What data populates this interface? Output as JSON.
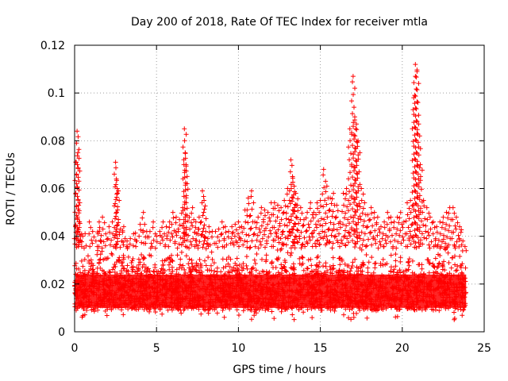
{
  "chart_data": {
    "type": "scatter",
    "title": "Day 200 of 2018, Rate Of TEC Index for receiver mtla",
    "xlabel": "GPS time / hours",
    "ylabel": "ROTI / TECUs",
    "xlim": [
      0,
      25
    ],
    "ylim": [
      0,
      0.12
    ],
    "x_ticks": [
      0,
      5,
      10,
      15,
      20,
      25
    ],
    "x_tick_labels": [
      "0",
      "5",
      "10",
      "15",
      "20",
      "25"
    ],
    "y_ticks": [
      0,
      0.02,
      0.04,
      0.06,
      0.08,
      0.1,
      0.12
    ],
    "y_tick_labels": [
      "0",
      "0.02",
      "0.04",
      "0.06",
      "0.08",
      "0.1",
      "0.12"
    ],
    "grid": true,
    "marker": "+",
    "color": "#ff0000",
    "series": [
      {
        "name": "ROTI",
        "x": [
          0.05,
          0.1,
          0.15,
          0.2,
          0.25,
          0.3,
          0.35,
          0.5,
          0.7,
          0.9,
          1.1,
          1.3,
          1.5,
          1.7,
          1.9,
          2.1,
          2.3,
          2.5,
          2.55,
          2.6,
          2.8,
          3.0,
          3.2,
          3.4,
          3.6,
          3.8,
          4.0,
          4.2,
          4.4,
          4.6,
          4.8,
          5.0,
          5.2,
          5.4,
          5.6,
          5.8,
          6.0,
          6.2,
          6.4,
          6.6,
          6.7,
          6.75,
          6.8,
          7.0,
          7.2,
          7.4,
          7.6,
          7.8,
          7.9,
          8.0,
          8.2,
          8.4,
          8.6,
          8.8,
          9.0,
          9.2,
          9.4,
          9.6,
          9.8,
          10.0,
          10.2,
          10.4,
          10.6,
          10.8,
          11.0,
          11.2,
          11.4,
          11.6,
          11.8,
          12.0,
          12.2,
          12.4,
          12.6,
          12.8,
          13.0,
          13.2,
          13.3,
          13.4,
          13.5,
          13.6,
          13.8,
          14.0,
          14.2,
          14.4,
          14.6,
          14.8,
          15.0,
          15.2,
          15.4,
          15.6,
          15.8,
          16.0,
          16.2,
          16.4,
          16.6,
          16.8,
          17.0,
          17.1,
          17.2,
          17.3,
          17.5,
          17.7,
          17.9,
          18.1,
          18.3,
          18.5,
          18.7,
          18.9,
          19.1,
          19.3,
          19.5,
          19.7,
          19.9,
          20.1,
          20.3,
          20.5,
          20.7,
          20.8,
          20.9,
          21.0,
          21.1,
          21.3,
          21.5,
          21.7,
          21.9,
          22.1,
          22.3,
          22.5,
          22.7,
          22.9,
          23.1,
          23.3,
          23.5,
          23.7,
          23.9
        ],
        "y": [
          0.044,
          0.071,
          0.084,
          0.075,
          0.053,
          0.046,
          0.038,
          0.04,
          0.036,
          0.046,
          0.042,
          0.038,
          0.046,
          0.048,
          0.041,
          0.044,
          0.046,
          0.071,
          0.064,
          0.06,
          0.043,
          0.044,
          0.038,
          0.039,
          0.041,
          0.038,
          0.045,
          0.05,
          0.042,
          0.042,
          0.046,
          0.04,
          0.042,
          0.046,
          0.044,
          0.046,
          0.05,
          0.048,
          0.047,
          0.052,
          0.085,
          0.075,
          0.07,
          0.048,
          0.052,
          0.046,
          0.048,
          0.059,
          0.055,
          0.042,
          0.044,
          0.042,
          0.042,
          0.043,
          0.046,
          0.044,
          0.042,
          0.044,
          0.045,
          0.046,
          0.044,
          0.051,
          0.056,
          0.059,
          0.046,
          0.048,
          0.052,
          0.051,
          0.05,
          0.054,
          0.054,
          0.053,
          0.052,
          0.055,
          0.06,
          0.072,
          0.065,
          0.061,
          0.058,
          0.053,
          0.052,
          0.047,
          0.05,
          0.054,
          0.05,
          0.054,
          0.055,
          0.068,
          0.061,
          0.056,
          0.058,
          0.053,
          0.046,
          0.058,
          0.06,
          0.085,
          0.107,
          0.09,
          0.087,
          0.08,
          0.06,
          0.054,
          0.049,
          0.052,
          0.05,
          0.048,
          0.044,
          0.046,
          0.05,
          0.048,
          0.046,
          0.048,
          0.05,
          0.046,
          0.054,
          0.055,
          0.098,
          0.112,
          0.109,
          0.087,
          0.07,
          0.055,
          0.052,
          0.048,
          0.046,
          0.044,
          0.046,
          0.048,
          0.05,
          0.052,
          0.052,
          0.048,
          0.044,
          0.038,
          0.034
        ]
      }
    ],
    "band": {
      "description_values": "dense cloud of points spanning the full time range",
      "typical_min": 0.005,
      "typical_center": 0.016,
      "typical_max": 0.035
    }
  }
}
